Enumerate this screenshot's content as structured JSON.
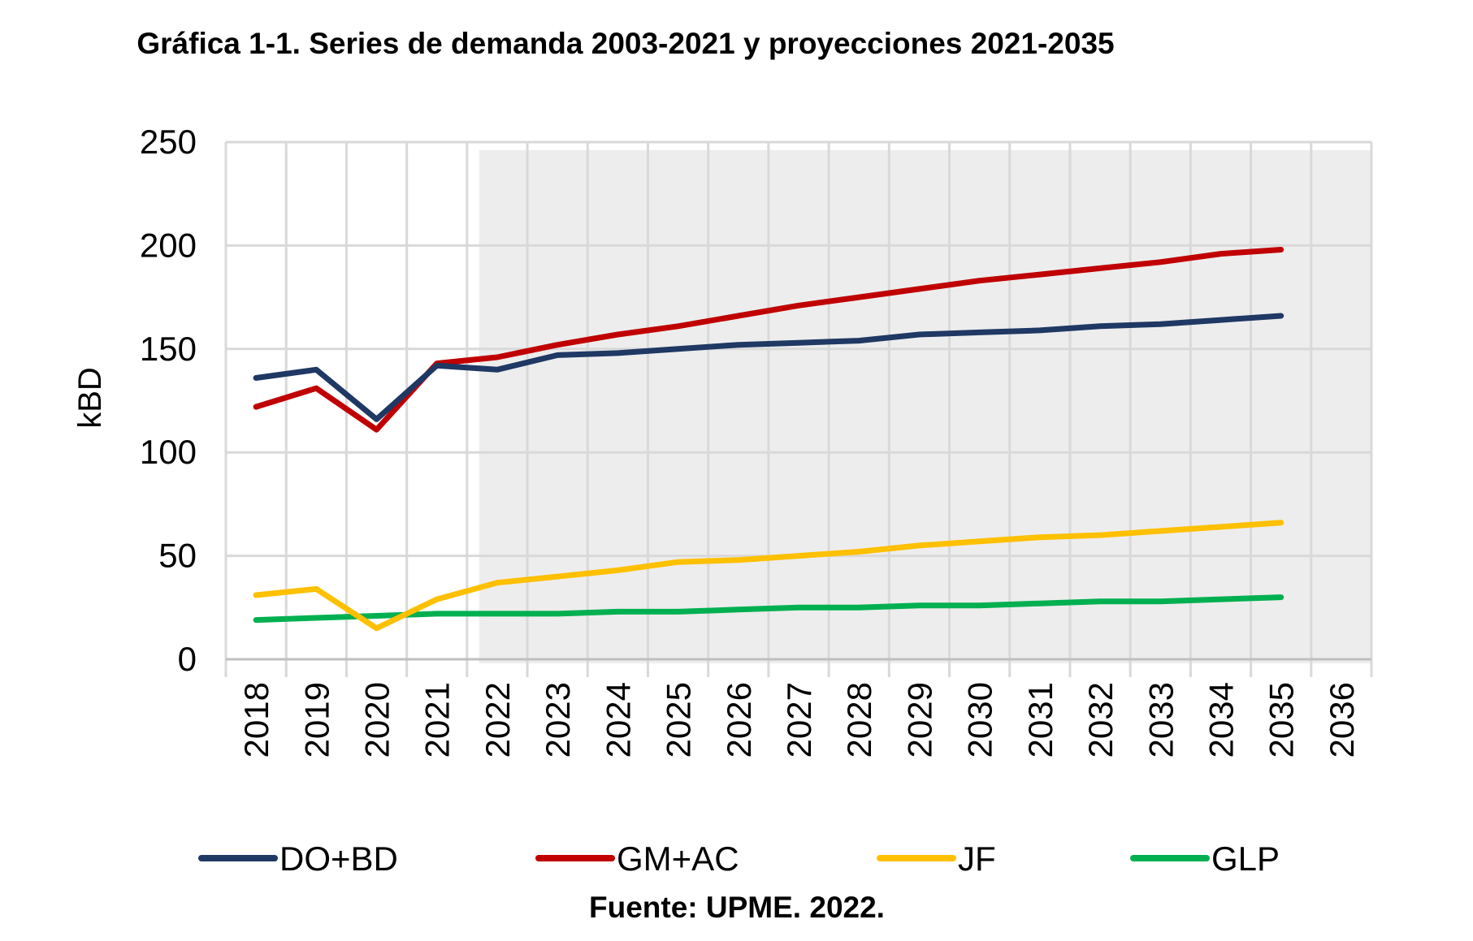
{
  "chart_data": {
    "type": "line",
    "title": "Gráfica 1-1. Series de demanda 2003-2021 y proyecciones 2021-2035",
    "ylabel": "kBD",
    "xlabel": "",
    "ylim": [
      0,
      250
    ],
    "yticks": [
      0,
      50,
      100,
      150,
      200,
      250
    ],
    "categories": [
      "2018",
      "2019",
      "2020",
      "2021",
      "2022",
      "2023",
      "2024",
      "2025",
      "2026",
      "2027",
      "2028",
      "2029",
      "2030",
      "2031",
      "2032",
      "2033",
      "2034",
      "2035",
      "2036"
    ],
    "projection_start": "2021",
    "grid": true,
    "legend_position": "bottom",
    "series": [
      {
        "name": "DO+BD",
        "color": "#1F3864",
        "values": [
          136,
          140,
          116,
          142,
          140,
          147,
          148,
          150,
          152,
          153,
          154,
          157,
          158,
          159,
          161,
          162,
          164,
          166,
          null
        ]
      },
      {
        "name": "GM+AC",
        "color": "#C00000",
        "values": [
          122,
          131,
          111,
          143,
          146,
          152,
          157,
          161,
          166,
          171,
          175,
          179,
          183,
          186,
          189,
          192,
          196,
          198,
          null
        ]
      },
      {
        "name": "JF",
        "color": "#FFC000",
        "values": [
          31,
          34,
          15,
          29,
          37,
          40,
          43,
          47,
          48,
          50,
          52,
          55,
          57,
          59,
          60,
          62,
          64,
          66,
          null
        ]
      },
      {
        "name": "GLP",
        "color": "#00B050",
        "values": [
          19,
          20,
          21,
          22,
          22,
          22,
          23,
          23,
          24,
          25,
          25,
          26,
          26,
          27,
          28,
          28,
          29,
          30,
          null
        ]
      }
    ]
  },
  "source": "Fuente: UPME. 2022.",
  "colors": {
    "grid": "#D9D9D9",
    "projection_shade": "#EDEDED",
    "axis": "#BFBFBF"
  }
}
